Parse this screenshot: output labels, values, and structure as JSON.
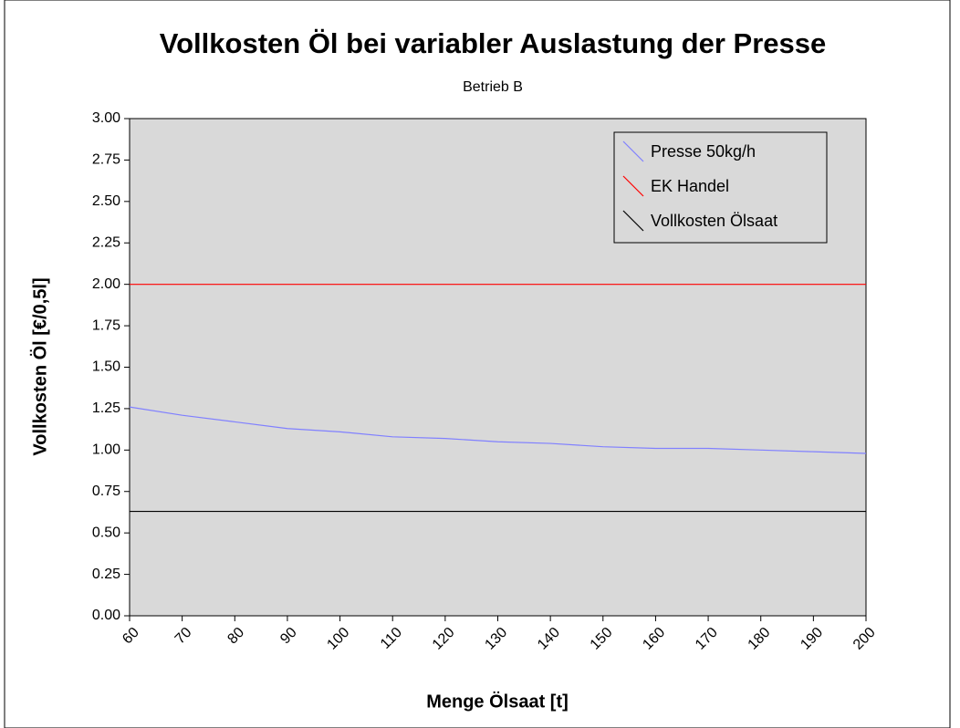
{
  "chart_data": {
    "type": "line",
    "title": "Vollkosten Öl bei variabler Auslastung der Presse",
    "subtitle": "Betrieb B",
    "xlabel": "Menge Ölsaat [t]",
    "ylabel": "Vollkosten Öl [€/0,5l]",
    "x": [
      60,
      70,
      80,
      90,
      100,
      110,
      120,
      130,
      140,
      150,
      160,
      170,
      180,
      190,
      200
    ],
    "series": [
      {
        "name": "Presse 50kg/h",
        "color": "#8080ff",
        "values": [
          1.26,
          1.21,
          1.17,
          1.13,
          1.11,
          1.08,
          1.07,
          1.05,
          1.04,
          1.02,
          1.01,
          1.01,
          1.0,
          0.99,
          0.98
        ]
      },
      {
        "name": "EK Handel",
        "color": "#ff0000",
        "values": [
          2.0,
          2.0,
          2.0,
          2.0,
          2.0,
          2.0,
          2.0,
          2.0,
          2.0,
          2.0,
          2.0,
          2.0,
          2.0,
          2.0,
          2.0
        ]
      },
      {
        "name": "Vollkosten Ölsaat",
        "color": "#000000",
        "values": [
          0.63,
          0.63,
          0.63,
          0.63,
          0.63,
          0.63,
          0.63,
          0.63,
          0.63,
          0.63,
          0.63,
          0.63,
          0.63,
          0.63,
          0.63
        ]
      }
    ],
    "xlim": [
      60,
      200
    ],
    "xticks": [
      60,
      70,
      80,
      90,
      100,
      110,
      120,
      130,
      140,
      150,
      160,
      170,
      180,
      190,
      200
    ],
    "ylim": [
      0,
      3
    ],
    "yticks": [
      {
        "value": 0,
        "label": "0.00"
      },
      {
        "value": 0.25,
        "label": "0.25"
      },
      {
        "value": 0.5,
        "label": "0.50"
      },
      {
        "value": 0.75,
        "label": "0.75"
      },
      {
        "value": 1,
        "label": "1.00"
      },
      {
        "value": 1.25,
        "label": "1.25"
      },
      {
        "value": 1.5,
        "label": "1.50"
      },
      {
        "value": 1.75,
        "label": "1.75"
      },
      {
        "value": 2,
        "label": "2.00"
      },
      {
        "value": 2.25,
        "label": "2.25"
      },
      {
        "value": 2.5,
        "label": "2.50"
      },
      {
        "value": 2.75,
        "label": "2.75"
      },
      {
        "value": 3,
        "label": "3.00"
      }
    ],
    "grid": false,
    "legend": "upper right"
  }
}
